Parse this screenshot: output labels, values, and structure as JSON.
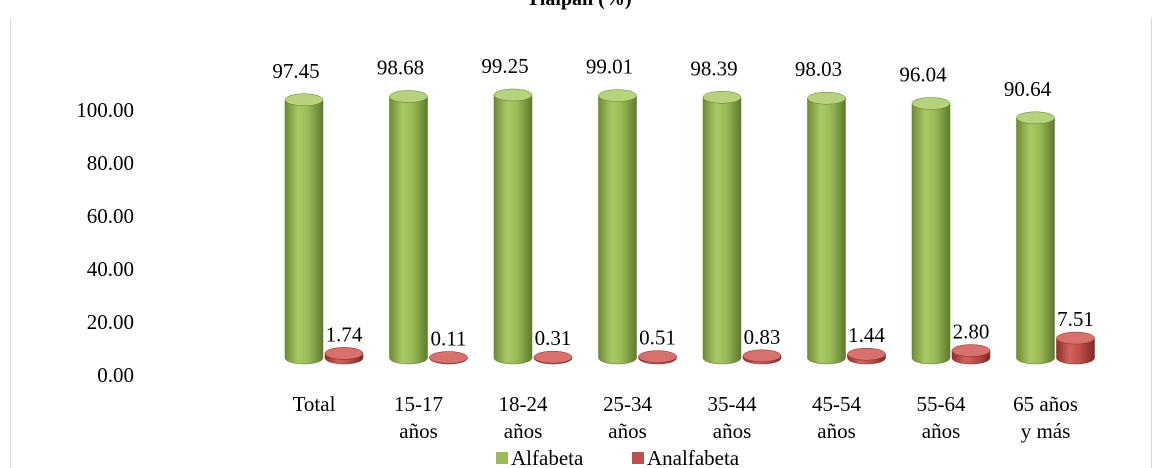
{
  "chart_data": {
    "type": "bar",
    "title": "Tlalpan (%)",
    "categories": [
      "Total",
      "15-17\naños",
      "18-24\naños",
      "25-34\naños",
      "35-44\naños",
      "45-54\naños",
      "55-64\naños",
      "65 años\ny más"
    ],
    "series": [
      {
        "name": "Alfabeta",
        "values": [
          97.45,
          98.68,
          99.25,
          99.01,
          98.39,
          98.03,
          96.04,
          90.64
        ],
        "color": "#9bbb59"
      },
      {
        "name": "Analfabeta",
        "values": [
          1.74,
          0.11,
          0.31,
          0.51,
          0.83,
          1.44,
          2.8,
          7.51
        ],
        "color": "#c0504d"
      }
    ],
    "value_labels": {
      "Alfabeta": [
        "97.45",
        "98.68",
        "99.25",
        "99.01",
        "98.39",
        "98.03",
        "96.04",
        "90.64"
      ],
      "Analfabeta": [
        "1.74",
        "0.11",
        "0.31",
        "0.51",
        "0.83",
        "1.44",
        "2.80",
        "7.51"
      ]
    },
    "yticks": [
      "0.00",
      "20.00",
      "40.00",
      "60.00",
      "80.00",
      "100.00"
    ],
    "ylim": [
      0,
      100
    ],
    "grid": false,
    "legend": "bottom",
    "style": "3d-cylinder"
  }
}
